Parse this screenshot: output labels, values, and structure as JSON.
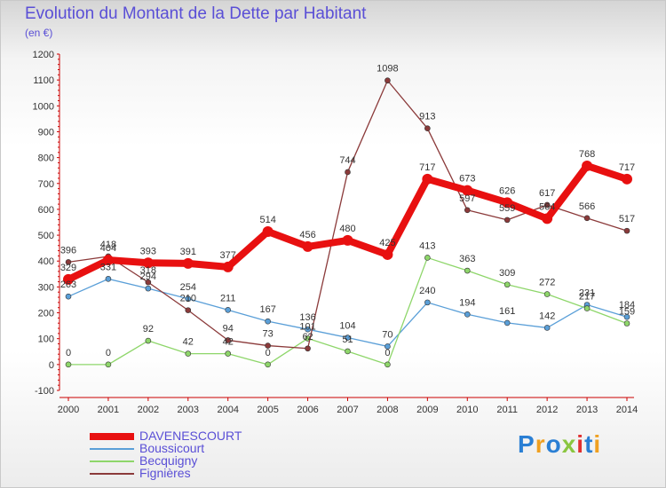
{
  "title": "Evolution du Montant de la Dette par Habitant",
  "unit_label": "(en €)",
  "logo": {
    "text": "Proxiti",
    "colors": [
      "#2a7fd4",
      "#f0a020",
      "#2a7fd4",
      "#8ac640",
      "#e03030",
      "#2a7fd4",
      "#f0a020"
    ]
  },
  "chart_data": {
    "type": "line",
    "x": [
      "2000",
      "2001",
      "2002",
      "2003",
      "2004",
      "2005",
      "2006",
      "2007",
      "2008",
      "2009",
      "2010",
      "2011",
      "2012",
      "2013",
      "2014"
    ],
    "ylim": [
      -100,
      1200
    ],
    "yticks": [
      "-100",
      "0",
      "100",
      "200",
      "300",
      "400",
      "500",
      "600",
      "700",
      "800",
      "900",
      "1000",
      "1100",
      "1200"
    ],
    "grid": false,
    "legend_position": "bottom-left",
    "series": [
      {
        "name": "DAVENESCOURT",
        "color": "#e81010",
        "values": [
          329,
          404,
          393,
          391,
          377,
          514,
          456,
          480,
          425,
          717,
          673,
          626,
          564,
          768,
          717
        ],
        "labels": [
          "329",
          "404",
          "393",
          "391",
          "377",
          "514",
          "456",
          "480",
          "425",
          "717",
          "673",
          "626",
          "564",
          "768",
          "717"
        ]
      },
      {
        "name": "Boussicourt",
        "color": "#5a9fd8",
        "values": [
          263,
          331,
          294,
          254,
          211,
          167,
          136,
          104,
          70,
          240,
          194,
          161,
          142,
          231,
          184
        ],
        "labels": [
          "263",
          "331",
          "294",
          "254",
          "211",
          "167",
          "136",
          "104",
          "70",
          "240",
          "194",
          "161",
          "142",
          "231",
          "184"
        ]
      },
      {
        "name": "Becquigny",
        "color": "#8ed66a",
        "values": [
          0,
          0,
          92,
          42,
          42,
          0,
          101,
          51,
          0,
          413,
          363,
          309,
          272,
          217,
          159
        ],
        "labels": [
          "0",
          "0",
          "92",
          "42",
          "42",
          "0",
          "101",
          "51",
          "0",
          "413",
          "363",
          "309",
          "272",
          "217",
          "159"
        ]
      },
      {
        "name": "Fignières",
        "color": "#8b3a3a",
        "values": [
          396,
          418,
          318,
          210,
          94,
          73,
          62,
          744,
          1098,
          913,
          597,
          559,
          617,
          566,
          517
        ],
        "labels": [
          "396",
          "418",
          "318",
          "210",
          "94",
          "73",
          "62",
          "744",
          "1098",
          "913",
          "597",
          "559",
          "617",
          "566",
          "517"
        ]
      }
    ]
  }
}
